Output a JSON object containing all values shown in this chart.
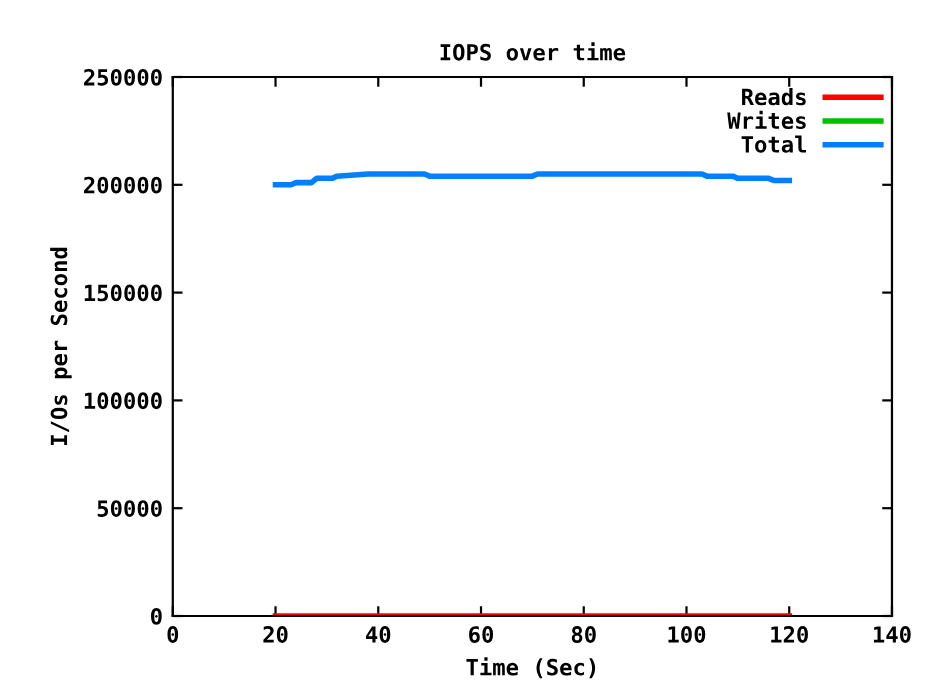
{
  "chart_data": {
    "type": "line",
    "title": "IOPS over time",
    "xlabel": "Time (Sec)",
    "ylabel": "I/Os per Second",
    "xlim": [
      0,
      140
    ],
    "xticks": [
      0,
      20,
      40,
      60,
      80,
      100,
      120,
      140
    ],
    "ylim": [
      0,
      250000
    ],
    "yticks": [
      0,
      50000,
      100000,
      150000,
      200000,
      250000
    ],
    "grid": false,
    "legend": "top right",
    "marker": "none",
    "line_style": "solid",
    "series": [
      {
        "name": "Reads",
        "color": "#ff0000",
        "x": [
          20,
          120
        ],
        "values": [
          0,
          0
        ]
      },
      {
        "name": "Writes",
        "color": "#00c000",
        "values": [
          null
        ]
      },
      {
        "name": "Total",
        "color": "#0080ff",
        "x": [
          20,
          23,
          24,
          27,
          28,
          31,
          32,
          38,
          49,
          50,
          70,
          71,
          103,
          104,
          109,
          110,
          116,
          117,
          120
        ],
        "values": [
          200000,
          200000,
          201000,
          201000,
          203000,
          203000,
          204000,
          205000,
          205000,
          204000,
          204000,
          205000,
          205000,
          204000,
          204000,
          203000,
          203000,
          202000,
          202000
        ]
      }
    ]
  }
}
